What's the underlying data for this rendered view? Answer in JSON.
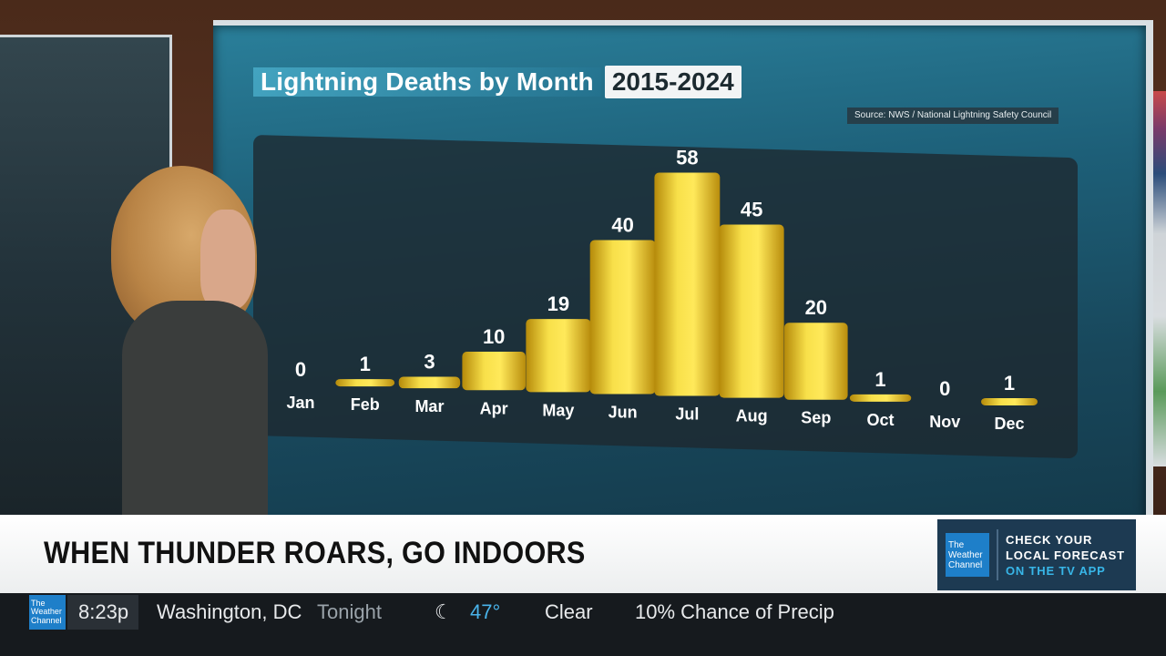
{
  "chart_data": {
    "type": "bar",
    "title": "Lightning Deaths by Month",
    "title_years": "2015-2024",
    "source": "Source: NWS / National Lightning Safety Council",
    "categories": [
      "Jan",
      "Feb",
      "Mar",
      "Apr",
      "May",
      "Jun",
      "Jul",
      "Aug",
      "Sep",
      "Oct",
      "Nov",
      "Dec"
    ],
    "values": [
      0,
      1,
      3,
      10,
      19,
      40,
      58,
      45,
      20,
      1,
      0,
      1
    ],
    "ylim": [
      0,
      58
    ],
    "bar_color": "#f5d21e",
    "xlabel": "",
    "ylabel": "",
    "grid": false,
    "legend": "none"
  },
  "lower_third": {
    "headline": "WHEN THUNDER ROARS, GO INDOORS",
    "promo": {
      "logo_l1": "The",
      "logo_l2": "Weather",
      "logo_l3": "Channel",
      "line1": "CHECK YOUR",
      "line2": "LOCAL FORECAST",
      "line3": "ON THE TV APP"
    }
  },
  "ticker": {
    "logo_l1": "The",
    "logo_l2": "Weather",
    "logo_l3": "Channel",
    "time": "8:23p",
    "city": "Washington, DC",
    "period": "Tonight",
    "icon": "moon-icon",
    "temp": "47°",
    "condition": "Clear",
    "precip": "10% Chance of Precip"
  },
  "colors": {
    "accent_blue": "#1e7fc9",
    "temp_blue": "#49b3ea",
    "bar_yellow": "#f5d21e"
  }
}
